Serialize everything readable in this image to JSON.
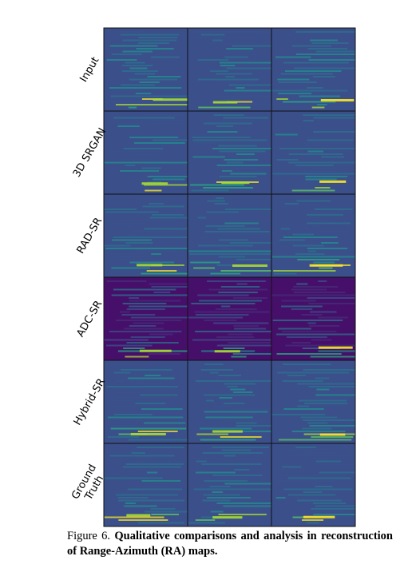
{
  "figure": {
    "row_labels": [
      "Input",
      "3D SRGAN",
      "RAD-SR",
      "ADC-SR",
      "Hybrid-SR",
      [
        "Ground",
        "Truth"
      ]
    ],
    "caption": {
      "label": "Figure 6.",
      "text": "Qualitative comparisons and analysis in reconstruction of Range-Azimuth (RA) maps."
    }
  }
}
